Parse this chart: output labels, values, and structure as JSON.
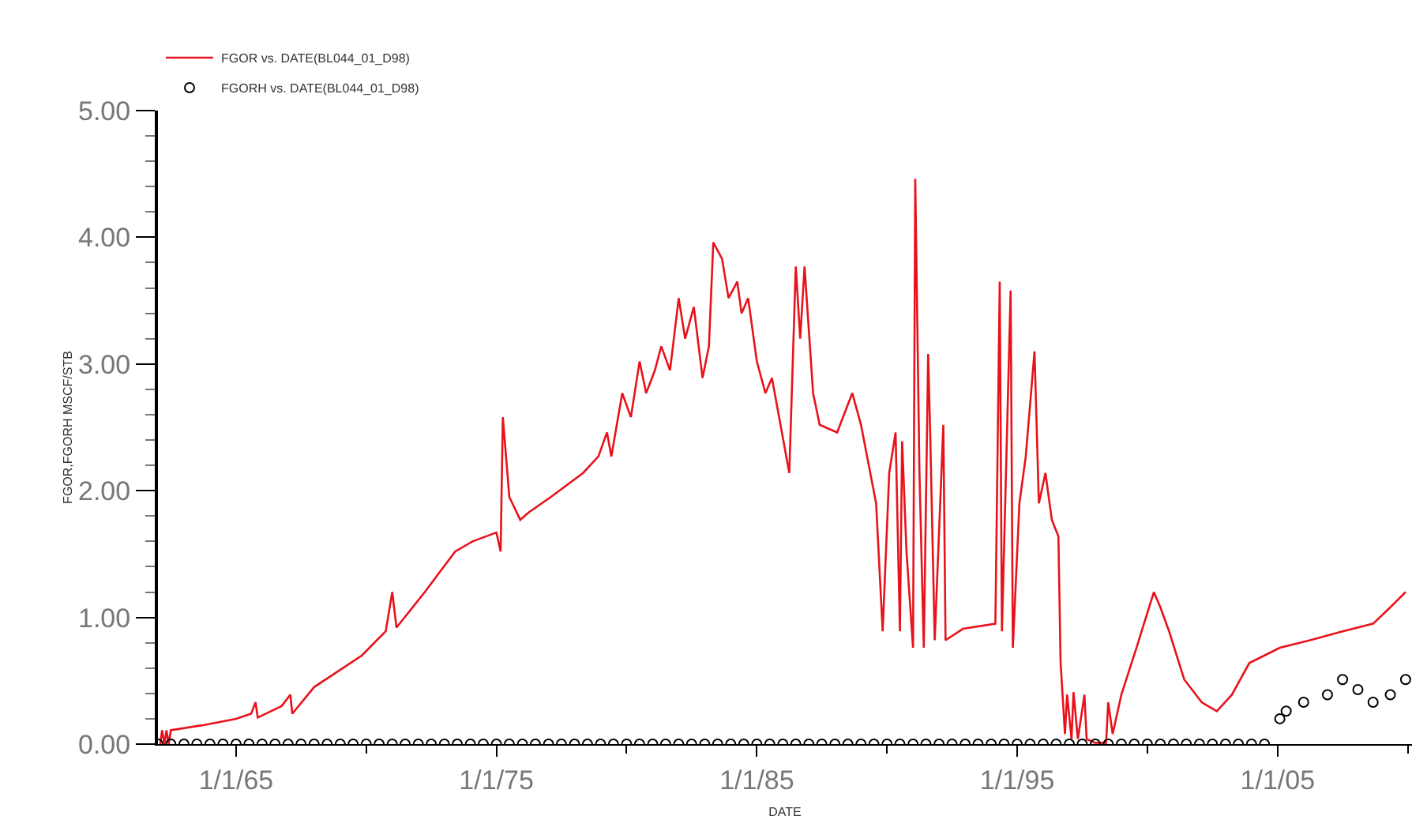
{
  "chart_data": {
    "type": "line",
    "xlabel": "DATE",
    "ylabel": "FGOR,FGORH MSCF/STB",
    "xlim": [
      "1962-01",
      "2010-03"
    ],
    "xticks": [
      {
        "value": "1965-01-01",
        "label": "1/1/65"
      },
      {
        "value": "1975-01-01",
        "label": "1/1/75"
      },
      {
        "value": "1985-01-01",
        "label": "1/1/85"
      },
      {
        "value": "1995-01-01",
        "label": "1/1/95"
      },
      {
        "value": "2005-01-01",
        "label": "1/1/05"
      }
    ],
    "ylim": [
      0,
      5
    ],
    "yticks": [
      {
        "value": 0,
        "label": "0.00"
      },
      {
        "value": 1,
        "label": "1.00"
      },
      {
        "value": 2,
        "label": "2.00"
      },
      {
        "value": 3,
        "label": "3.00"
      },
      {
        "value": 4,
        "label": "4.00"
      },
      {
        "value": 5,
        "label": "5.00"
      }
    ],
    "grid": false,
    "legend": "top left",
    "series": [
      {
        "name": "FGOR vs. DATE(BL044_01_D98)",
        "color": "#e8121b",
        "marker": "none",
        "line_style": "solid",
        "x": [
          "1962-02",
          "1962-03",
          "1962-04",
          "1962-05",
          "1962-06",
          "1962-07",
          "1963-10",
          "1965-01",
          "1965-08",
          "1965-10",
          "1965-11",
          "1966-10",
          "1967-02",
          "1967-03",
          "1968-01",
          "1969-11",
          "1970-10",
          "1971-01",
          "1971-03",
          "1972-04",
          "1973-06",
          "1974-02",
          "1975-01",
          "1975-03",
          "1975-04",
          "1975-07",
          "1975-12",
          "1976-04",
          "1977-02",
          "1978-05",
          "1978-12",
          "1979-04",
          "1979-06",
          "1979-11",
          "1980-03",
          "1980-07",
          "1980-10",
          "1981-02",
          "1981-05",
          "1981-09",
          "1982-01",
          "1982-04",
          "1982-08",
          "1982-12",
          "1983-03",
          "1983-05",
          "1983-09",
          "1983-12",
          "1984-04",
          "1984-06",
          "1984-09",
          "1985-01",
          "1985-05",
          "1985-08",
          "1986-04",
          "1986-07",
          "1986-09",
          "1986-11",
          "1987-03",
          "1987-06",
          "1988-02",
          "1988-09",
          "1989-01",
          "1989-08",
          "1989-11",
          "1990-02",
          "1990-05",
          "1990-07",
          "1990-08",
          "1990-10",
          "1991-01",
          "1991-02",
          "1991-04",
          "1991-06",
          "1991-08",
          "1991-09",
          "1991-11",
          "1992-03",
          "1992-04",
          "1992-12",
          "1994-03",
          "1994-05",
          "1994-06",
          "1994-10",
          "1994-11",
          "1995-02",
          "1995-05",
          "1995-09",
          "1995-11",
          "1996-02",
          "1996-05",
          "1996-08",
          "1996-09",
          "1996-11",
          "1996-12",
          "1997-02",
          "1997-03",
          "1997-05",
          "1997-08",
          "1997-09",
          "1998-01",
          "1998-06",
          "1998-07",
          "1998-09",
          "1999-01",
          "1999-08",
          "2000-04",
          "2000-07",
          "2000-11",
          "2001-06",
          "2002-02",
          "2002-09",
          "2003-04",
          "2003-12",
          "2004-07",
          "2005-02",
          "2006-04",
          "2007-07",
          "2008-09",
          "2009-05",
          "2009-12"
        ],
        "values": [
          0,
          0.11,
          0,
          0.11,
          0,
          0.11,
          0.15,
          0.2,
          0.24,
          0.33,
          0.21,
          0.3,
          0.39,
          0.24,
          0.45,
          0.7,
          0.89,
          1.2,
          0.92,
          1.2,
          1.52,
          1.6,
          1.67,
          1.52,
          2.58,
          1.95,
          1.77,
          1.83,
          1.95,
          2.14,
          2.27,
          2.46,
          2.27,
          2.77,
          2.58,
          3.02,
          2.77,
          2.95,
          3.14,
          2.95,
          3.52,
          3.2,
          3.45,
          2.89,
          3.14,
          3.96,
          3.83,
          3.52,
          3.65,
          3.4,
          3.52,
          3.02,
          2.77,
          2.89,
          2.14,
          3.77,
          3.2,
          3.77,
          2.77,
          2.52,
          2.46,
          2.77,
          2.52,
          1.9,
          0.89,
          2.14,
          2.46,
          0.89,
          2.39,
          1.52,
          0.76,
          4.46,
          2.14,
          0.76,
          3.08,
          2.39,
          0.82,
          2.52,
          0.82,
          0.91,
          0.95,
          3.65,
          0.89,
          3.58,
          0.76,
          1.9,
          2.27,
          3.1,
          1.9,
          2.14,
          1.77,
          1.64,
          0.64,
          0.08,
          0.39,
          0.04,
          0.41,
          0.04,
          0.39,
          0.04,
          0.01,
          0.01,
          0.33,
          0.08,
          0.39,
          0.76,
          1.2,
          1.08,
          0.89,
          0.51,
          0.33,
          0.26,
          0.39,
          0.64,
          0.7,
          0.76,
          0.82,
          0.89,
          0.95,
          1.08,
          1.2
        ]
      },
      {
        "name": "FGORH vs. DATE(BL044_01_D98)",
        "color": "#000000",
        "type": "scatter",
        "marker": "circle",
        "x": [
          "1962-01",
          "1962-07",
          "1963-01",
          "1963-07",
          "1964-01",
          "1964-07",
          "1965-01",
          "1965-07",
          "1966-01",
          "1966-07",
          "1967-01",
          "1967-07",
          "1968-01",
          "1968-07",
          "1969-01",
          "1969-07",
          "1970-01",
          "1970-07",
          "1971-01",
          "1971-07",
          "1972-01",
          "1972-07",
          "1973-01",
          "1973-07",
          "1974-01",
          "1974-07",
          "1975-01",
          "1975-07",
          "1976-01",
          "1976-07",
          "1977-01",
          "1977-07",
          "1978-01",
          "1978-07",
          "1979-01",
          "1979-07",
          "1980-01",
          "1980-07",
          "1981-01",
          "1981-07",
          "1982-01",
          "1982-07",
          "1983-01",
          "1983-07",
          "1984-01",
          "1984-07",
          "1985-01",
          "1985-07",
          "1986-01",
          "1986-07",
          "1987-01",
          "1987-07",
          "1988-01",
          "1988-07",
          "1989-01",
          "1989-07",
          "1990-01",
          "1990-07",
          "1991-01",
          "1991-07",
          "1992-01",
          "1992-07",
          "1993-01",
          "1993-07",
          "1994-01",
          "1994-07",
          "1995-01",
          "1995-07",
          "1996-01",
          "1996-07",
          "1997-01",
          "1997-07",
          "1998-01",
          "1998-07",
          "1999-01",
          "1999-07",
          "2000-01",
          "2000-07",
          "2001-01",
          "2001-07",
          "2002-01",
          "2002-07",
          "2003-01",
          "2003-07",
          "2004-01",
          "2004-07",
          "2005-02",
          "2005-05",
          "2006-01",
          "2006-12",
          "2007-07",
          "2008-02",
          "2008-09",
          "2009-05",
          "2009-12"
        ],
        "values": [
          0,
          0,
          0,
          0,
          0,
          0,
          0,
          0,
          0,
          0,
          0,
          0,
          0,
          0,
          0,
          0,
          0,
          0,
          0,
          0,
          0,
          0,
          0,
          0,
          0,
          0,
          0,
          0,
          0,
          0,
          0,
          0,
          0,
          0,
          0,
          0,
          0,
          0,
          0,
          0,
          0,
          0,
          0,
          0,
          0,
          0,
          0,
          0,
          0,
          0,
          0,
          0,
          0,
          0,
          0,
          0,
          0,
          0,
          0,
          0,
          0,
          0,
          0,
          0,
          0,
          0,
          0,
          0,
          0,
          0,
          0,
          0,
          0,
          0,
          0,
          0,
          0,
          0,
          0,
          0,
          0,
          0,
          0,
          0,
          0,
          0,
          0.2,
          0.26,
          0.33,
          0.39,
          0.51,
          0.43,
          0.33,
          0.39,
          0.51
        ]
      }
    ]
  }
}
